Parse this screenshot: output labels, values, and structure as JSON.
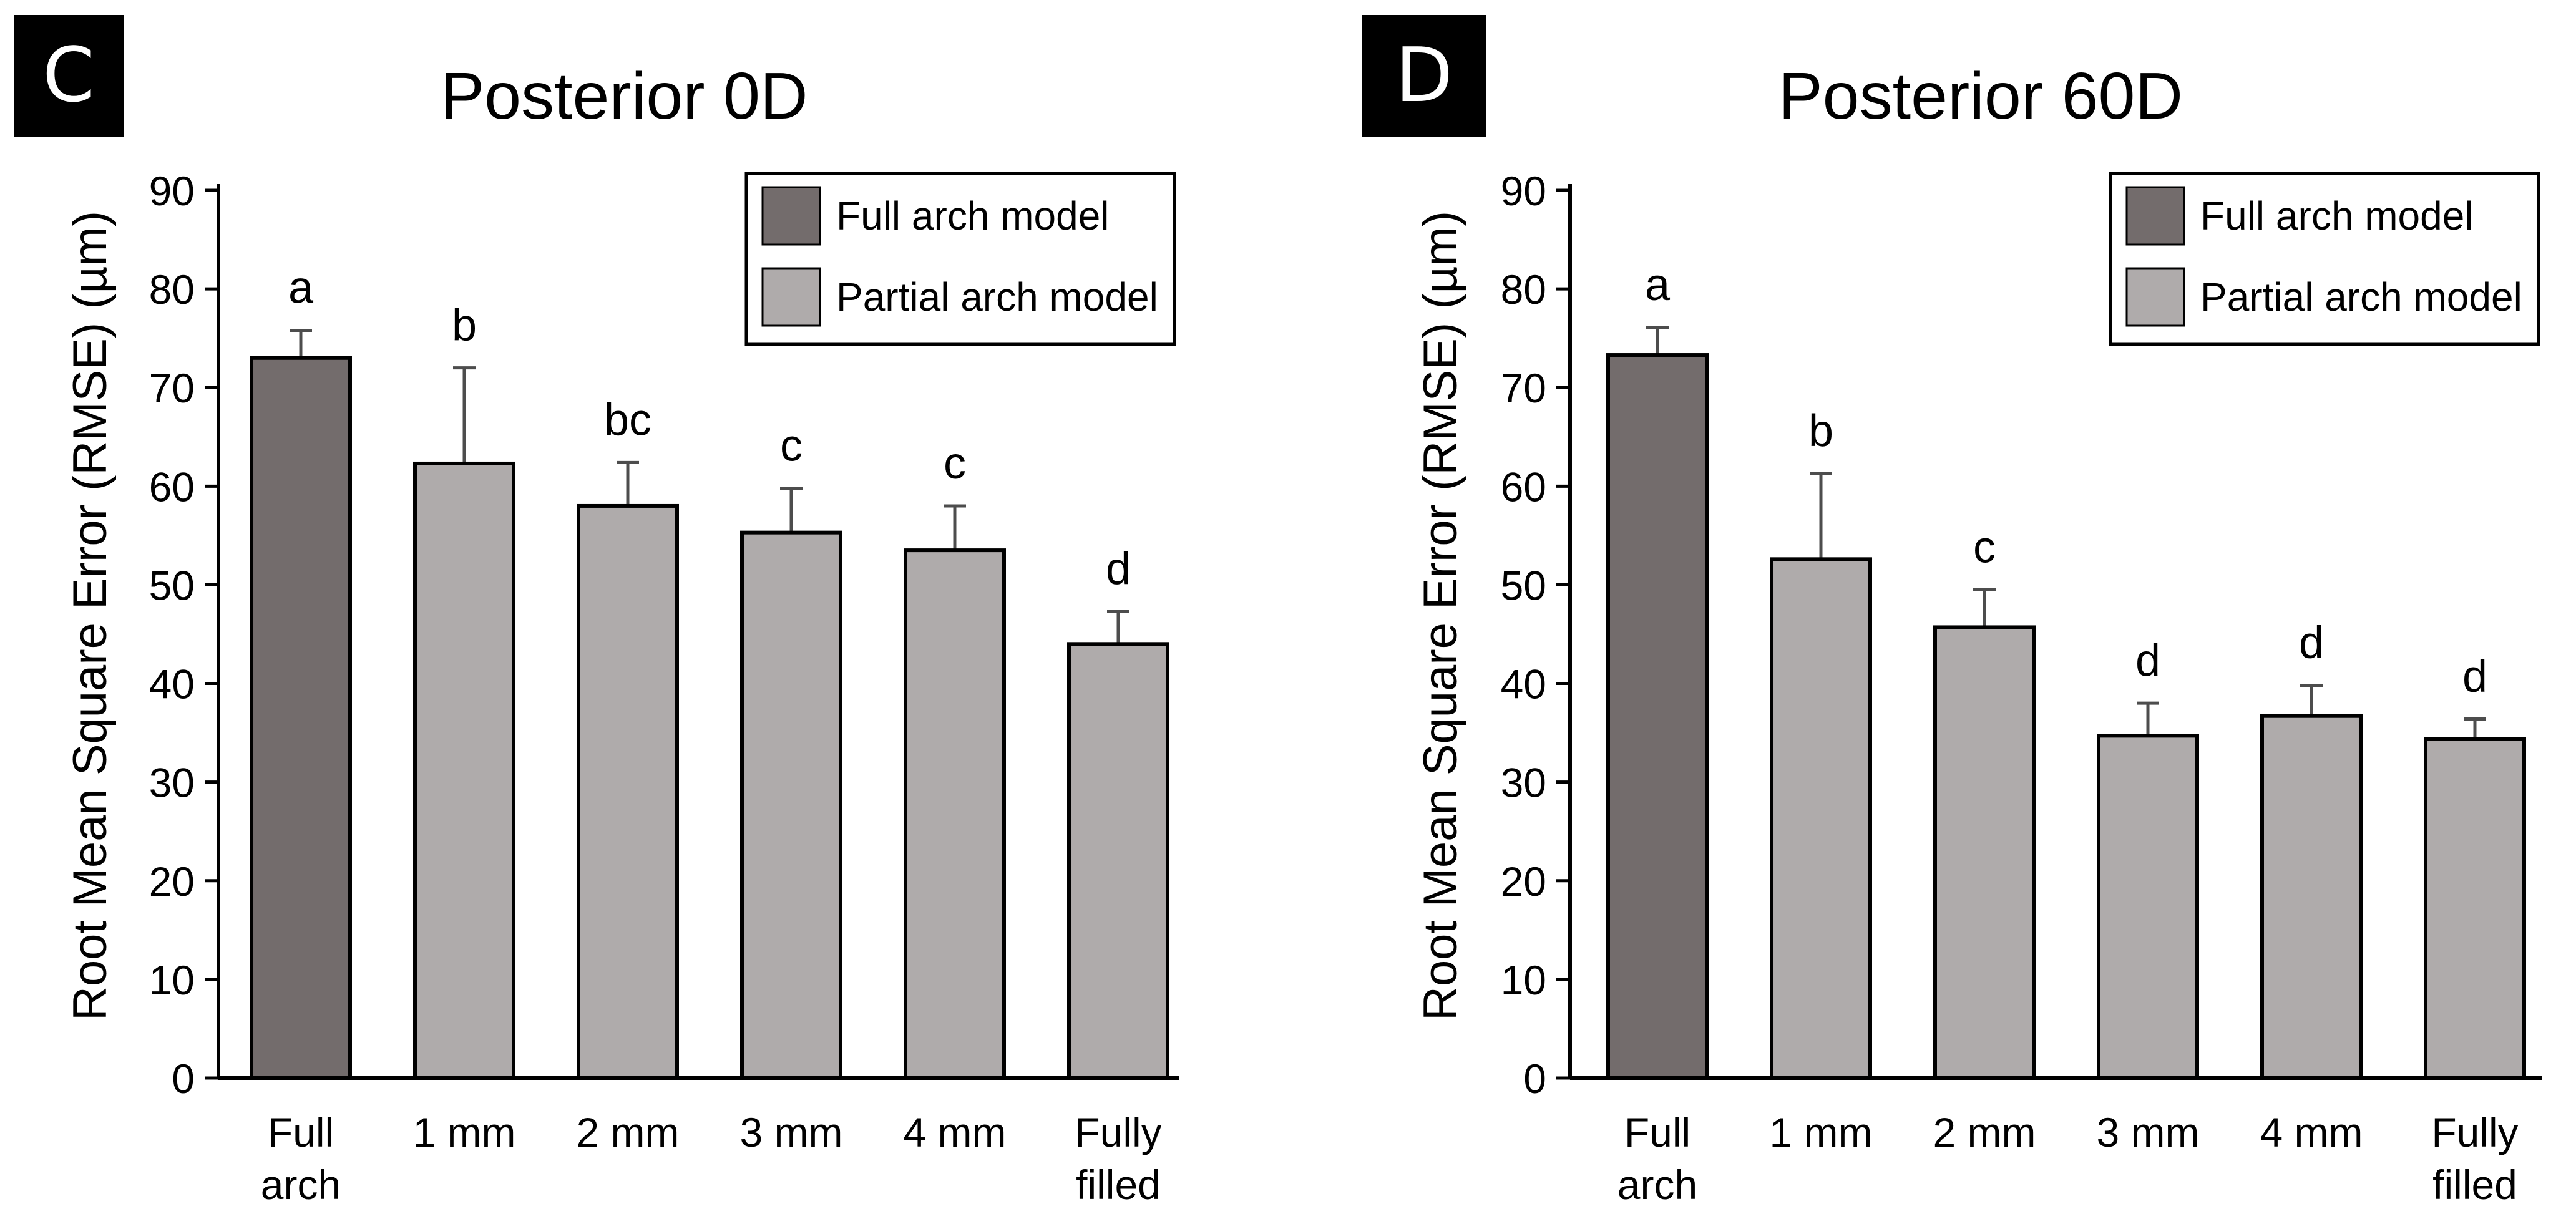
{
  "colors": {
    "full_arch": "#736c6c",
    "partial_arch": "#afabab",
    "axis": "#000000",
    "error_bar": "#4d4d4d"
  },
  "panels": [
    {
      "label": "C",
      "title": "Posterior 0D",
      "ylabel": "Root Mean Square Error (RMSE) (µm)",
      "legend": [
        {
          "label": "Full arch model",
          "series": "full_arch"
        },
        {
          "label": "Partial arch model",
          "series": "partial_arch"
        }
      ]
    },
    {
      "label": "D",
      "title": "Posterior 60D",
      "ylabel": "Root Mean Square Error (RMSE) (µm)",
      "legend": [
        {
          "label": "Full arch model",
          "series": "full_arch"
        },
        {
          "label": "Partial arch model",
          "series": "partial_arch"
        }
      ]
    }
  ],
  "chart_data": [
    {
      "type": "bar",
      "title": "Posterior 0D",
      "ylabel": "Root Mean Square Error (RMSE) (µm)",
      "xlabel": "",
      "ylim": [
        0,
        90
      ],
      "yticks": [
        "0",
        "10",
        "20",
        "30",
        "40",
        "50",
        "60",
        "70",
        "80",
        "90"
      ],
      "categories": [
        [
          "Full",
          "arch"
        ],
        [
          "1 mm"
        ],
        [
          "2 mm"
        ],
        [
          "3 mm"
        ],
        [
          "4 mm"
        ],
        [
          "Fully",
          "filled"
        ]
      ],
      "values": [
        73,
        62.3,
        58,
        55.3,
        53.5,
        44
      ],
      "error": [
        2.8,
        9.7,
        4.4,
        4.5,
        4.5,
        3.3
      ],
      "group_letters": [
        "a",
        "b",
        "bc",
        "c",
        "c",
        "d"
      ],
      "bar_series": [
        "full_arch",
        "partial_arch",
        "partial_arch",
        "partial_arch",
        "partial_arch",
        "partial_arch"
      ],
      "grid": false,
      "legend_position": "top-right"
    },
    {
      "type": "bar",
      "title": "Posterior 60D",
      "ylabel": "Root Mean Square Error (RMSE) (µm)",
      "xlabel": "",
      "ylim": [
        0,
        90
      ],
      "yticks": [
        "0",
        "10",
        "20",
        "30",
        "40",
        "50",
        "60",
        "70",
        "80",
        "90"
      ],
      "categories": [
        [
          "Full",
          "arch"
        ],
        [
          "1 mm"
        ],
        [
          "2 mm"
        ],
        [
          "3 mm"
        ],
        [
          "4 mm"
        ],
        [
          "Fully",
          "filled"
        ]
      ],
      "values": [
        73.3,
        52.6,
        45.7,
        34.7,
        36.7,
        34.4
      ],
      "error": [
        2.8,
        8.7,
        3.8,
        3.3,
        3.1,
        2.0
      ],
      "group_letters": [
        "a",
        "b",
        "c",
        "d",
        "d",
        "d"
      ],
      "bar_series": [
        "full_arch",
        "partial_arch",
        "partial_arch",
        "partial_arch",
        "partial_arch",
        "partial_arch"
      ],
      "grid": false,
      "legend_position": "top-right"
    }
  ]
}
